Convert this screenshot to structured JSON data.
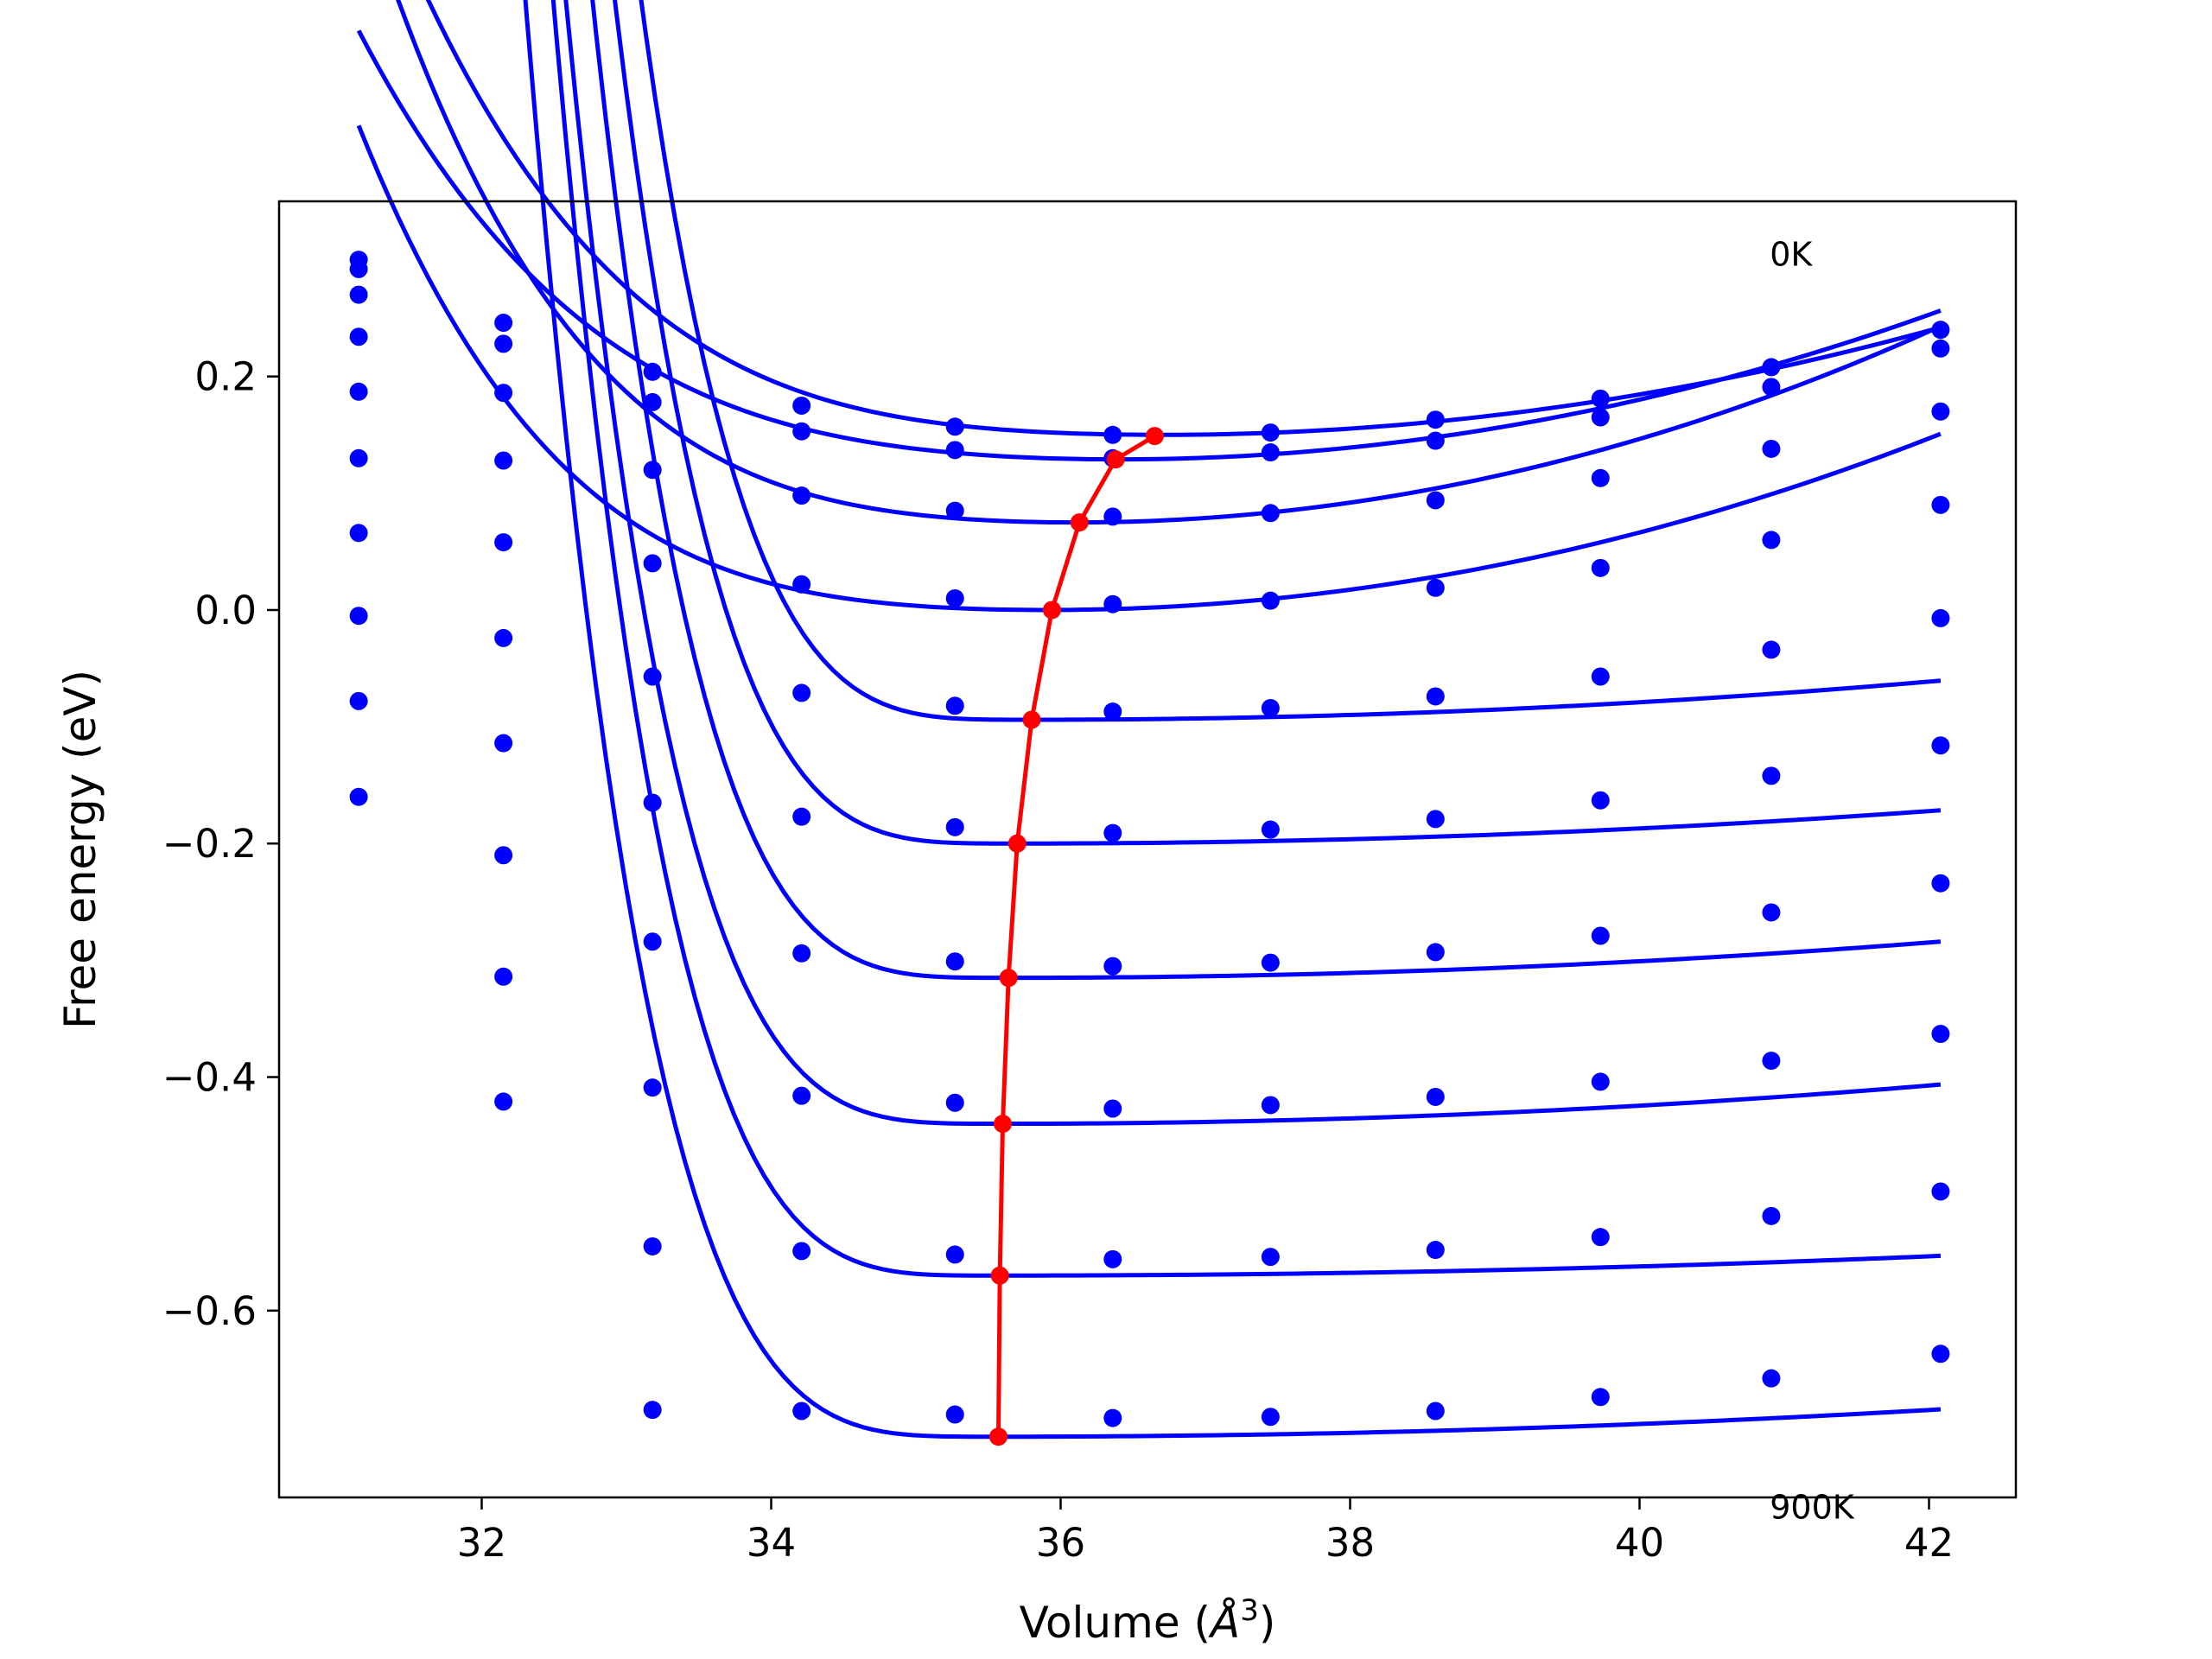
{
  "chart_data": {
    "type": "line",
    "title": "",
    "xlabel": "Volume (Å³)",
    "xlabel_main": "Volume (",
    "xlabel_unit": "Å",
    "xlabel_exp": "3",
    "xlabel_close": ")",
    "ylabel": "Free energy (eV)",
    "xlim": [
      30.6,
      42.6
    ],
    "ylim": [
      -0.76,
      0.35
    ],
    "xticks": [
      32,
      34,
      36,
      38,
      40,
      42
    ],
    "xtick_labels": [
      "32",
      "34",
      "36",
      "38",
      "40",
      "42"
    ],
    "yticks": [
      0.2,
      0.0,
      -0.2,
      -0.4,
      -0.6
    ],
    "ytick_labels": [
      "0.2",
      "0.0",
      "−0.2",
      "−0.4",
      "−0.6"
    ],
    "grid": false,
    "legend": "none",
    "annotations": [
      {
        "text": "0K",
        "x": 40.9,
        "y": 0.295
      },
      {
        "text": "900K",
        "x": 40.9,
        "y": -0.778
      }
    ],
    "colors": {
      "fits": "#0000ff",
      "points": "#0000ff",
      "minima": "#ff0000"
    },
    "x_points": [
      31.15,
      32.15,
      33.18,
      34.21,
      35.27,
      36.36,
      37.45,
      38.59,
      39.73,
      40.91,
      42.08
    ],
    "series": [
      {
        "points": [
          0.3,
          0.246,
          0.204,
          0.175,
          0.157,
          0.15,
          0.152,
          0.163,
          0.181,
          0.208,
          0.24
        ],
        "fit": {
          "a": 0.15,
          "v0": 36.7,
          "b": 0.00318,
          "c": 0.00044
        }
      },
      {
        "points": [
          0.292,
          0.228,
          0.178,
          0.153,
          0.137,
          0.13,
          0.135,
          0.145,
          0.165,
          0.191,
          0.224
        ],
        "fit": {
          "a": 0.129,
          "v0": 36.4,
          "b": 0.00395,
          "c": 0.00034
        }
      },
      {
        "points": [
          0.27,
          0.186,
          0.12,
          0.098,
          0.085,
          0.08,
          0.083,
          0.094,
          0.113,
          0.138,
          0.17
        ],
        "fit": {
          "a": 0.075,
          "v0": 36.1,
          "b": 0.0047,
          "c": 0.00072
        }
      },
      {
        "points": [
          0.234,
          0.128,
          0.04,
          0.022,
          0.01,
          0.005,
          0.008,
          0.019,
          0.036,
          0.06,
          0.09
        ],
        "fit": {
          "a": 0.0,
          "v0": 35.9,
          "b": 0.00395,
          "c": 0.00064
        }
      },
      {
        "points": [
          0.187,
          0.058,
          -0.057,
          -0.071,
          -0.082,
          -0.087,
          -0.084,
          -0.074,
          -0.057,
          -0.034,
          -0.007
        ],
        "fit": {
          "a": -0.094,
          "v0": 35.8,
          "b": 0.00085,
          "c": 0.0115
        }
      },
      {
        "points": [
          0.13,
          -0.024,
          -0.165,
          -0.177,
          -0.186,
          -0.191,
          -0.188,
          -0.179,
          -0.163,
          -0.142,
          -0.116
        ],
        "fit": {
          "a": -0.2,
          "v0": 35.7,
          "b": 0.0007,
          "c": 0.012
        }
      },
      {
        "points": [
          0.066,
          -0.114,
          -0.284,
          -0.294,
          -0.301,
          -0.305,
          -0.302,
          -0.293,
          -0.279,
          -0.259,
          -0.234
        ],
        "fit": {
          "a": -0.315,
          "v0": 35.65,
          "b": 0.00075,
          "c": 0.012
        }
      },
      {
        "points": [
          -0.005,
          -0.21,
          -0.409,
          -0.416,
          -0.422,
          -0.427,
          -0.424,
          -0.417,
          -0.404,
          -0.386,
          -0.363
        ],
        "fit": {
          "a": -0.44,
          "v0": 35.6,
          "b": 0.0008,
          "c": 0.0115
        }
      },
      {
        "points": [
          -0.078,
          -0.314,
          -0.545,
          -0.549,
          -0.552,
          -0.556,
          -0.554,
          -0.548,
          -0.537,
          -0.519,
          -0.498
        ],
        "fit": {
          "a": -0.57,
          "v0": 35.58,
          "b": 0.0004,
          "c": 0.012
        }
      },
      {
        "points": [
          -0.16,
          -0.421,
          -0.685,
          -0.686,
          -0.689,
          -0.692,
          -0.691,
          -0.686,
          -0.674,
          -0.658,
          -0.637
        ],
        "fit": {
          "a": -0.708,
          "v0": 35.55,
          "b": 0.00055,
          "c": 0.011
        }
      }
    ],
    "minima": {
      "x": [
        36.65,
        36.38,
        36.13,
        35.94,
        35.8,
        35.7,
        35.64,
        35.6,
        35.58,
        35.57
      ],
      "y": [
        0.149,
        0.129,
        0.075,
        0.0,
        -0.094,
        -0.2,
        -0.315,
        -0.44,
        -0.57,
        -0.708
      ]
    }
  }
}
